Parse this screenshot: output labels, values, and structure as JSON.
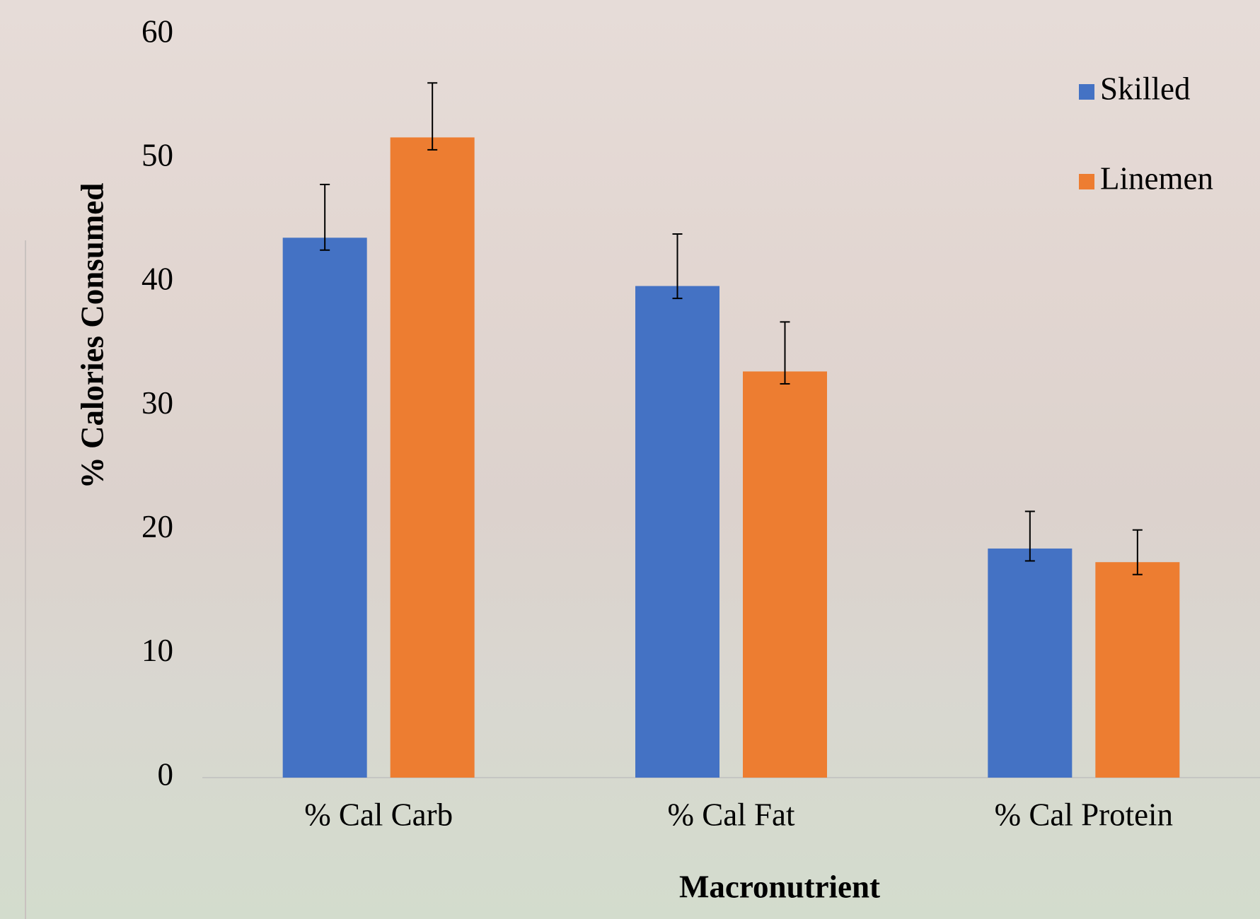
{
  "chart_data": {
    "type": "bar",
    "y_label": "% Calories Consumed",
    "x_label": "Macronutrient",
    "categories": [
      "% Cal Carb",
      "% Cal Fat",
      "% Cal Protein"
    ],
    "series": [
      {
        "name": "Skilled",
        "color": "#4472c4",
        "values": [
          43.6,
          39.7,
          18.5
        ],
        "error_plus": [
          4.3,
          4.2,
          3.0
        ],
        "error_minus": [
          1.0,
          1.0,
          1.0
        ]
      },
      {
        "name": "Linemen",
        "color": "#ed7d31",
        "values": [
          51.7,
          32.8,
          17.4
        ],
        "error_plus": [
          4.4,
          4.0,
          2.6
        ],
        "error_minus": [
          1.0,
          1.0,
          1.0
        ]
      }
    ],
    "ylim": [
      0,
      60
    ],
    "yticks": [
      0,
      10,
      20,
      30,
      40,
      50,
      60
    ],
    "grid": false,
    "legend": "top-right"
  }
}
